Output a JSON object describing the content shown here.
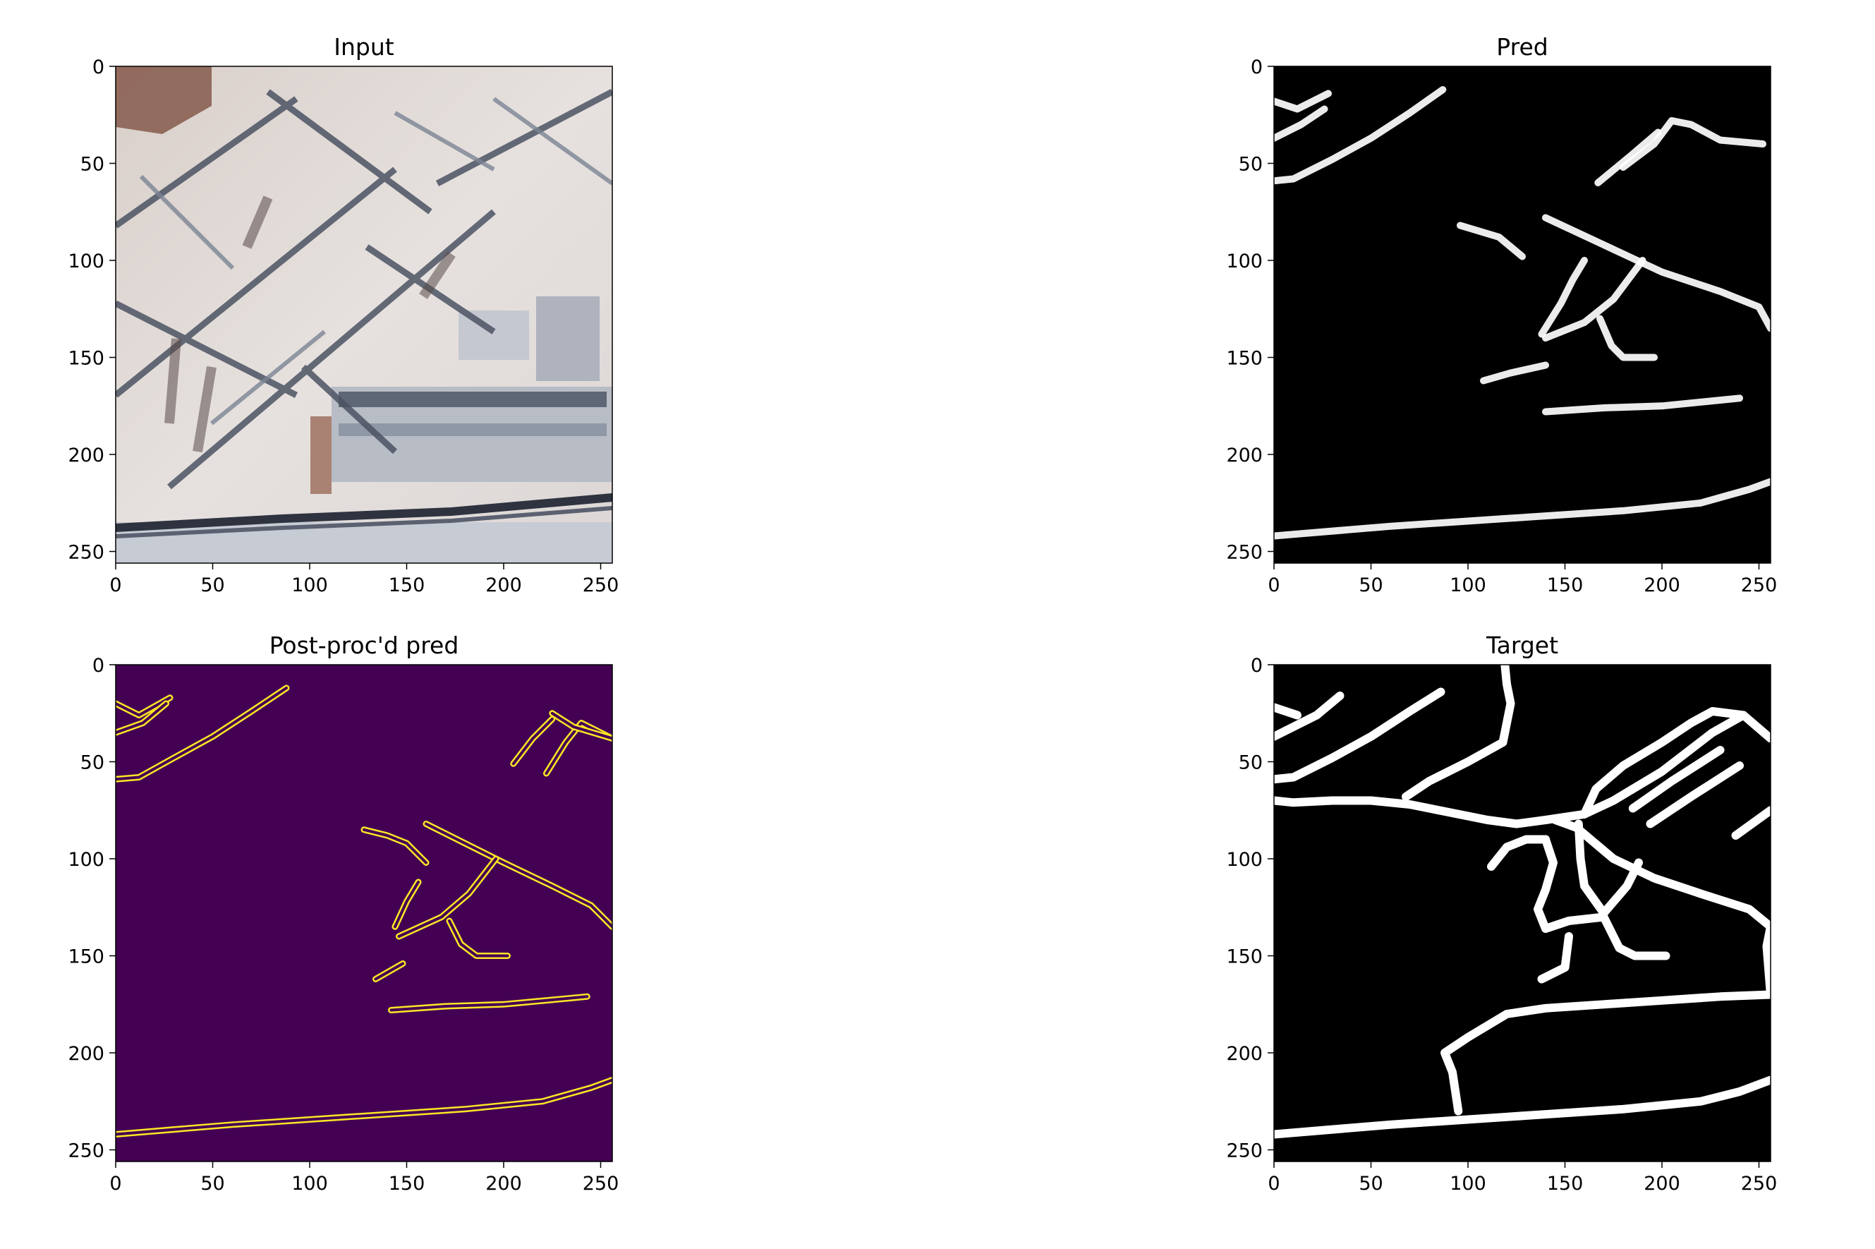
{
  "figure": {
    "layout": "2x2 image grid",
    "colors": {
      "background": "#ffffff",
      "axis": "#000000"
    }
  },
  "chart_data": [
    {
      "type": "heatmap",
      "title": "Input",
      "content": "aerial RGB photo, snow-covered industrial area",
      "xlim": [
        0,
        256
      ],
      "ylim": [
        256,
        0
      ],
      "xticks": [
        0,
        50,
        100,
        150,
        200,
        250
      ],
      "yticks": [
        0,
        50,
        100,
        150,
        200,
        250
      ],
      "colormap": "rgb",
      "roads": []
    },
    {
      "type": "heatmap",
      "title": "Pred",
      "content": "road probability map",
      "xlim": [
        0,
        256
      ],
      "ylim": [
        256,
        0
      ],
      "xticks": [
        0,
        50,
        100,
        150,
        200,
        250
      ],
      "yticks": [
        0,
        50,
        100,
        150,
        200,
        250
      ],
      "colormap": "gray",
      "background": "#000000",
      "line_color": "#ffffff",
      "roads": [
        [
          [
            0,
            18
          ],
          [
            12,
            22
          ],
          [
            28,
            14
          ]
        ],
        [
          [
            0,
            37
          ],
          [
            14,
            30
          ],
          [
            26,
            22
          ]
        ],
        [
          [
            0,
            59
          ],
          [
            10,
            58
          ],
          [
            30,
            48
          ],
          [
            50,
            37
          ],
          [
            70,
            24
          ],
          [
            87,
            12
          ]
        ],
        [
          [
            167,
            60
          ],
          [
            184,
            46
          ],
          [
            198,
            34
          ]
        ],
        [
          [
            180,
            52
          ],
          [
            196,
            40
          ],
          [
            205,
            28
          ],
          [
            215,
            30
          ],
          [
            230,
            38
          ],
          [
            252,
            40
          ]
        ],
        [
          [
            96,
            82
          ],
          [
            116,
            88
          ],
          [
            128,
            98
          ]
        ],
        [
          [
            140,
            78
          ],
          [
            170,
            92
          ],
          [
            200,
            106
          ],
          [
            230,
            116
          ],
          [
            250,
            124
          ],
          [
            256,
            135
          ]
        ],
        [
          [
            138,
            138
          ],
          [
            148,
            122
          ],
          [
            154,
            110
          ],
          [
            160,
            100
          ]
        ],
        [
          [
            140,
            140
          ],
          [
            160,
            132
          ],
          [
            175,
            120
          ],
          [
            190,
            100
          ]
        ],
        [
          [
            168,
            130
          ],
          [
            174,
            144
          ],
          [
            180,
            150
          ],
          [
            196,
            150
          ]
        ],
        [
          [
            108,
            162
          ],
          [
            122,
            158
          ],
          [
            140,
            154
          ]
        ],
        [
          [
            140,
            178
          ],
          [
            170,
            176
          ],
          [
            200,
            175
          ],
          [
            240,
            171
          ]
        ],
        [
          [
            0,
            242
          ],
          [
            60,
            237
          ],
          [
            120,
            233
          ],
          [
            180,
            229
          ],
          [
            220,
            225
          ],
          [
            245,
            218
          ],
          [
            256,
            214
          ]
        ]
      ]
    },
    {
      "type": "heatmap",
      "title": "Post-proc'd pred",
      "content": "edge contours of post-processed prediction",
      "xlim": [
        0,
        256
      ],
      "ylim": [
        256,
        0
      ],
      "xticks": [
        0,
        50,
        100,
        150,
        200,
        250
      ],
      "yticks": [
        0,
        50,
        100,
        150,
        200,
        250
      ],
      "colormap": "viridis",
      "background": "#440154",
      "line_color": "#fde725",
      "roads": [
        [
          [
            0,
            20
          ],
          [
            12,
            26
          ],
          [
            28,
            17
          ]
        ],
        [
          [
            0,
            35
          ],
          [
            14,
            30
          ],
          [
            26,
            20
          ]
        ],
        [
          [
            0,
            59
          ],
          [
            12,
            58
          ],
          [
            30,
            48
          ],
          [
            50,
            37
          ],
          [
            70,
            24
          ],
          [
            88,
            12
          ]
        ],
        [
          [
            205,
            51
          ],
          [
            215,
            38
          ],
          [
            225,
            28
          ]
        ],
        [
          [
            222,
            56
          ],
          [
            232,
            40
          ],
          [
            240,
            30
          ],
          [
            256,
            38
          ]
        ],
        [
          [
            225,
            25
          ],
          [
            236,
            32
          ],
          [
            256,
            38
          ]
        ],
        [
          [
            128,
            85
          ],
          [
            140,
            88
          ],
          [
            150,
            92
          ],
          [
            160,
            102
          ]
        ],
        [
          [
            160,
            82
          ],
          [
            180,
            92
          ],
          [
            200,
            102
          ],
          [
            225,
            114
          ],
          [
            245,
            124
          ],
          [
            256,
            135
          ]
        ],
        [
          [
            144,
            135
          ],
          [
            150,
            122
          ],
          [
            156,
            112
          ]
        ],
        [
          [
            146,
            140
          ],
          [
            168,
            130
          ],
          [
            182,
            118
          ],
          [
            196,
            100
          ]
        ],
        [
          [
            172,
            132
          ],
          [
            178,
            144
          ],
          [
            186,
            150
          ],
          [
            202,
            150
          ]
        ],
        [
          [
            134,
            162
          ],
          [
            148,
            154
          ]
        ],
        [
          [
            142,
            178
          ],
          [
            170,
            176
          ],
          [
            200,
            175
          ],
          [
            243,
            171
          ]
        ],
        [
          [
            0,
            242
          ],
          [
            60,
            237
          ],
          [
            120,
            233
          ],
          [
            180,
            229
          ],
          [
            220,
            225
          ],
          [
            245,
            218
          ],
          [
            256,
            214
          ]
        ]
      ]
    },
    {
      "type": "heatmap",
      "title": "Target",
      "content": "ground-truth road mask",
      "xlim": [
        0,
        256
      ],
      "ylim": [
        256,
        0
      ],
      "xticks": [
        0,
        50,
        100,
        150,
        200,
        250
      ],
      "yticks": [
        0,
        50,
        100,
        150,
        200,
        250
      ],
      "colormap": "gray",
      "background": "#000000",
      "line_color": "#ffffff",
      "roads": [
        [
          [
            0,
            22
          ],
          [
            12,
            26
          ]
        ],
        [
          [
            0,
            37
          ],
          [
            22,
            26
          ],
          [
            34,
            16
          ]
        ],
        [
          [
            0,
            59
          ],
          [
            10,
            58
          ],
          [
            30,
            48
          ],
          [
            50,
            37
          ],
          [
            70,
            24
          ],
          [
            86,
            14
          ]
        ],
        [
          [
            0,
            70
          ],
          [
            10,
            71
          ],
          [
            30,
            70
          ],
          [
            50,
            70
          ],
          [
            70,
            72
          ],
          [
            90,
            76
          ],
          [
            110,
            80
          ],
          [
            125,
            82
          ],
          [
            140,
            80
          ],
          [
            160,
            77
          ]
        ],
        [
          [
            119,
            0
          ],
          [
            120,
            10
          ],
          [
            122,
            20
          ],
          [
            118,
            40
          ],
          [
            100,
            50
          ],
          [
            80,
            60
          ],
          [
            68,
            68
          ]
        ],
        [
          [
            160,
            77
          ],
          [
            166,
            64
          ],
          [
            180,
            52
          ],
          [
            200,
            40
          ],
          [
            215,
            30
          ],
          [
            226,
            24
          ],
          [
            242,
            26
          ],
          [
            256,
            38
          ]
        ],
        [
          [
            160,
            77
          ],
          [
            175,
            70
          ],
          [
            200,
            55
          ],
          [
            226,
            35
          ],
          [
            242,
            26
          ]
        ],
        [
          [
            185,
            74
          ],
          [
            205,
            60
          ],
          [
            230,
            44
          ]
        ],
        [
          [
            194,
            82
          ],
          [
            215,
            68
          ],
          [
            240,
            52
          ]
        ],
        [
          [
            238,
            88
          ],
          [
            256,
            75
          ]
        ],
        [
          [
            145,
            80
          ],
          [
            156,
            84
          ],
          [
            175,
            100
          ],
          [
            196,
            110
          ],
          [
            220,
            118
          ],
          [
            245,
            126
          ],
          [
            256,
            135
          ]
        ],
        [
          [
            112,
            104
          ],
          [
            120,
            94
          ],
          [
            130,
            90
          ],
          [
            140,
            90
          ]
        ],
        [
          [
            140,
            90
          ],
          [
            144,
            102
          ],
          [
            140,
            116
          ],
          [
            136,
            126
          ],
          [
            140,
            136
          ],
          [
            152,
            132
          ],
          [
            170,
            130
          ]
        ],
        [
          [
            157,
            82
          ],
          [
            158,
            100
          ],
          [
            160,
            114
          ],
          [
            170,
            128
          ],
          [
            182,
            114
          ],
          [
            188,
            102
          ]
        ],
        [
          [
            170,
            130
          ],
          [
            178,
            146
          ],
          [
            186,
            150
          ],
          [
            202,
            150
          ]
        ],
        [
          [
            138,
            162
          ],
          [
            150,
            156
          ],
          [
            152,
            140
          ]
        ],
        [
          [
            256,
            135
          ],
          [
            254,
            145
          ],
          [
            256,
            170
          ]
        ],
        [
          [
            95,
            230
          ],
          [
            92,
            210
          ],
          [
            88,
            200
          ],
          [
            100,
            192
          ],
          [
            120,
            180
          ],
          [
            140,
            177
          ],
          [
            170,
            175
          ],
          [
            200,
            173
          ],
          [
            230,
            171
          ],
          [
            256,
            170
          ]
        ],
        [
          [
            0,
            242
          ],
          [
            60,
            237
          ],
          [
            120,
            233
          ],
          [
            180,
            229
          ],
          [
            220,
            225
          ],
          [
            240,
            220
          ],
          [
            256,
            214
          ]
        ]
      ]
    }
  ]
}
